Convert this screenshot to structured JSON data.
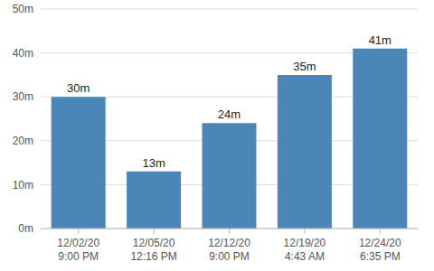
{
  "chart_data": {
    "type": "bar",
    "categories": [
      "12/02/20 9:00 PM",
      "12/05/20 12:16 PM",
      "12/12/20 9:00 PM",
      "12/19/20 4:43 AM",
      "12/24/20 6:35 PM"
    ],
    "values": [
      30,
      13,
      24,
      35,
      41
    ],
    "value_labels": [
      "30m",
      "13m",
      "24m",
      "35m",
      "41m"
    ],
    "data_labels": true,
    "color": "#4a86b8",
    "ylim": [
      0,
      50
    ],
    "yticks": [
      {
        "value": 0,
        "label": "0m"
      },
      {
        "value": 10,
        "label": "10m"
      },
      {
        "value": 20,
        "label": "20m"
      },
      {
        "value": 30,
        "label": "30m"
      },
      {
        "value": 40,
        "label": "40m"
      },
      {
        "value": 50,
        "label": "50m"
      }
    ],
    "grid": true
  }
}
